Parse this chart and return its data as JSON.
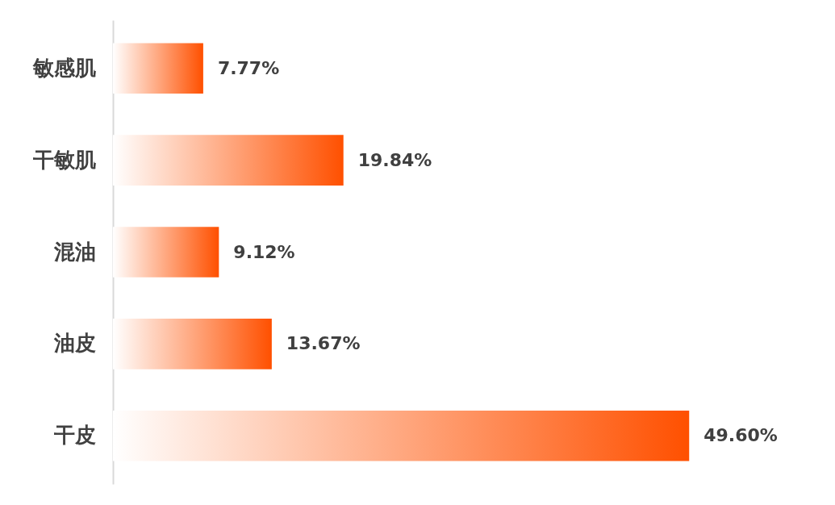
{
  "chart_data": {
    "type": "bar",
    "orientation": "horizontal",
    "categories": [
      "敏感肌",
      "干敏肌",
      "混油",
      "油皮",
      "干皮"
    ],
    "values": [
      7.77,
      19.84,
      9.12,
      13.67,
      49.6
    ],
    "value_labels": [
      "7.77%",
      "19.84%",
      "9.12%",
      "13.67%",
      "49.60%"
    ],
    "color": "#ff5000",
    "tick_labels": "y"
  }
}
